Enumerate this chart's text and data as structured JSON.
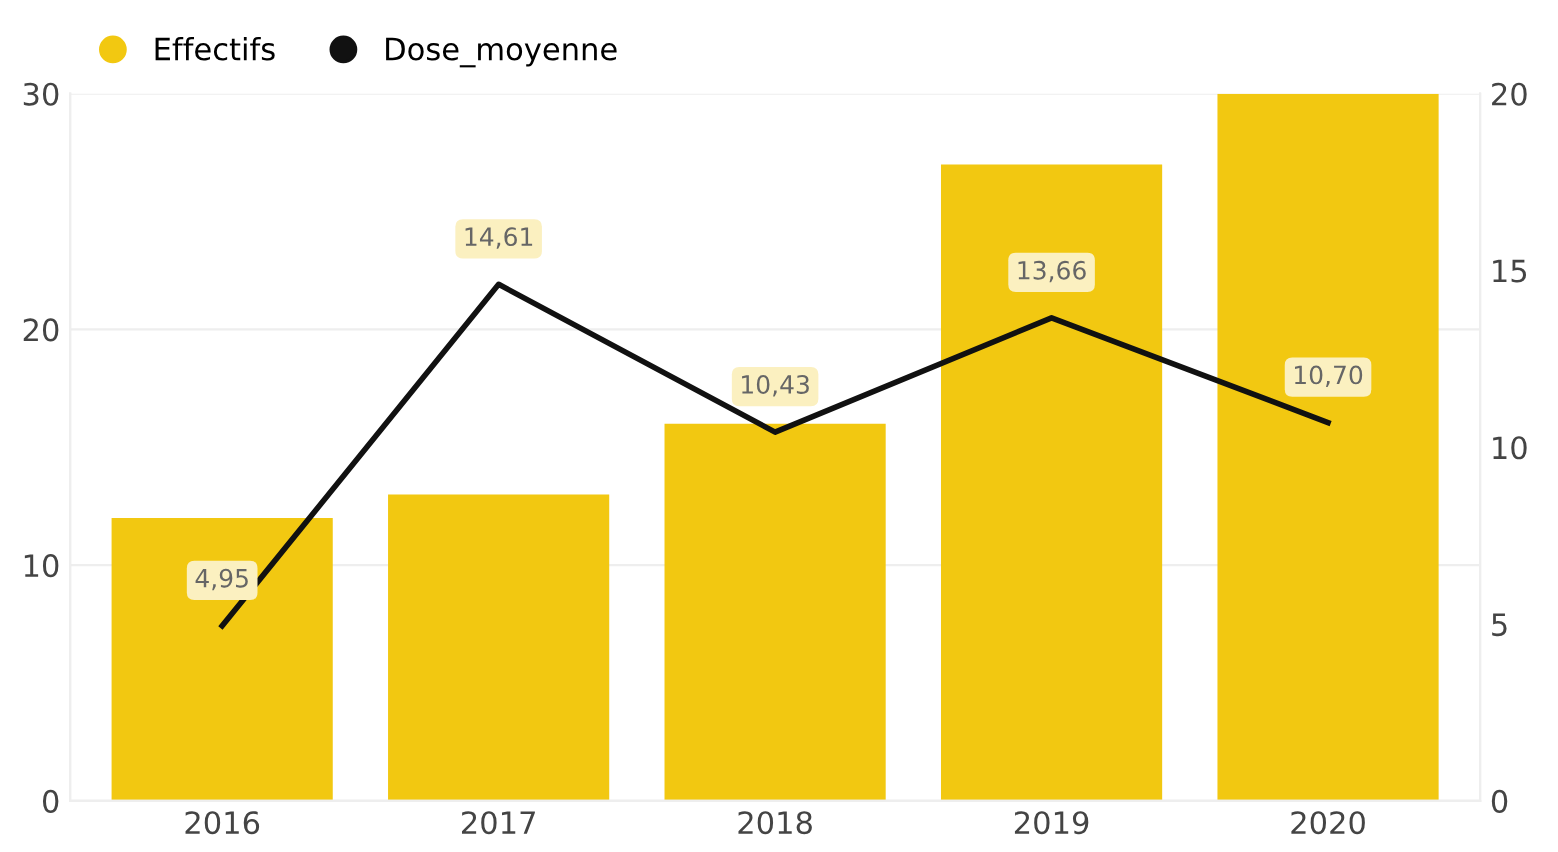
{
  "chart_data": {
    "type": "bar",
    "categories": [
      "2016",
      "2017",
      "2018",
      "2019",
      "2020"
    ],
    "series": [
      {
        "name": "Effectifs",
        "color": "#f2c811",
        "values": [
          12,
          13,
          16,
          27,
          30
        ]
      },
      {
        "name": "Dose_moyenne",
        "type": "line",
        "axis": "y2",
        "color": "#111111",
        "values": [
          4.95,
          14.61,
          10.43,
          13.66,
          10.7
        ],
        "value_labels": [
          "4,95",
          "14,61",
          "10,43",
          "13,66",
          "10,70"
        ]
      }
    ],
    "ylim": [
      0,
      30
    ],
    "yticks": [
      0,
      10,
      20,
      30
    ],
    "y2lim": [
      0,
      20
    ],
    "y2ticks": [
      0,
      5,
      10,
      15,
      20
    ],
    "grid": "y",
    "legend": "top left",
    "marker": "none",
    "line_style": "solid"
  }
}
